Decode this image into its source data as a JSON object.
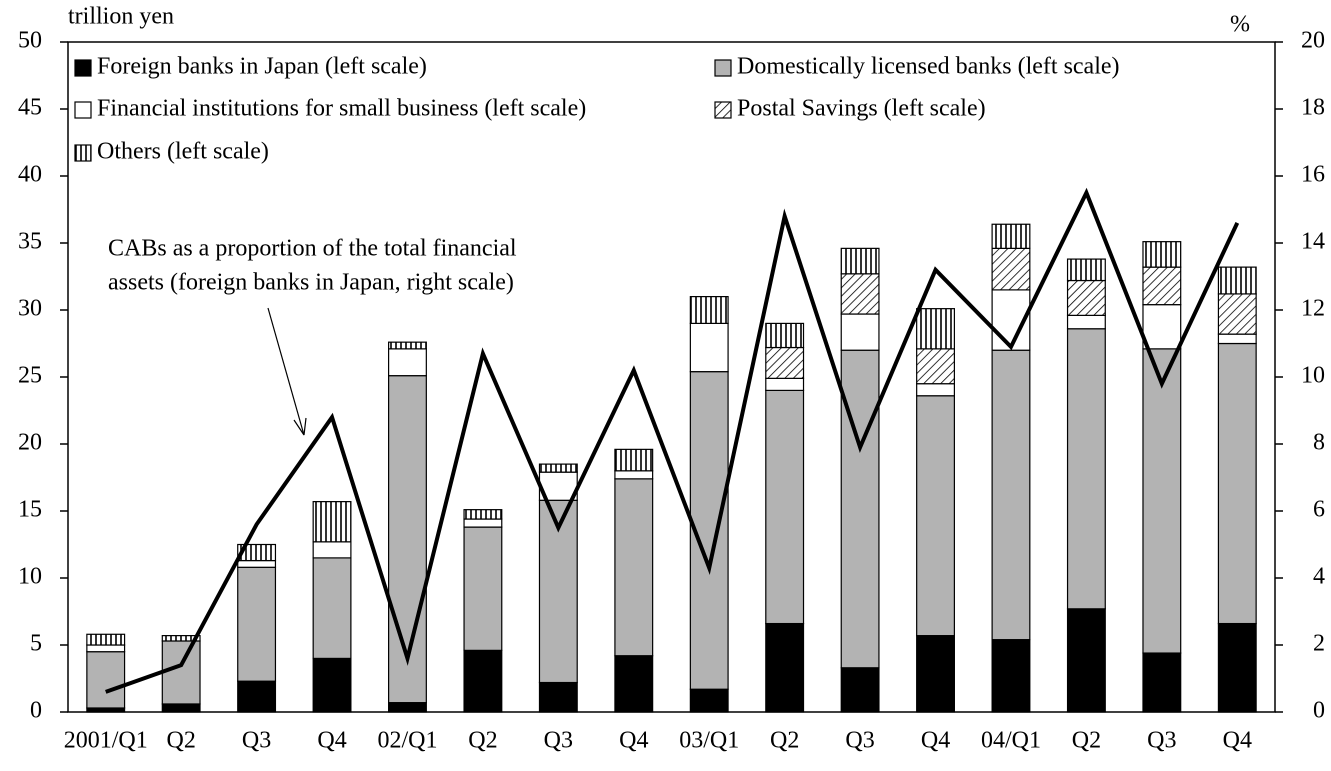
{
  "chart_data": {
    "type": "bar",
    "stacked": true,
    "y_label": "trillion yen",
    "y2_label": "%",
    "annotation": [
      "CABs as a proportion of the total financial",
      "assets (foreign banks in Japan, right scale)"
    ],
    "categories": [
      "2001/Q1",
      "Q2",
      "Q3",
      "Q4",
      "02/Q1",
      "Q2",
      "Q3",
      "Q4",
      "03/Q1",
      "Q2",
      "Q3",
      "Q4",
      "04/Q1",
      "Q2",
      "Q3",
      "Q4"
    ],
    "series": [
      {
        "name": "Foreign banks in Japan (left scale)",
        "color": "#000000",
        "values": [
          0.3,
          0.6,
          2.3,
          4.0,
          0.7,
          4.6,
          2.2,
          4.2,
          1.7,
          6.6,
          3.3,
          5.7,
          5.4,
          7.7,
          4.4,
          6.6
        ]
      },
      {
        "name": "Domestically licensed banks (left scale)",
        "color": "#b3b3b3",
        "values": [
          4.2,
          4.7,
          8.5,
          7.5,
          24.4,
          9.2,
          13.6,
          13.2,
          23.7,
          17.4,
          23.7,
          17.9,
          21.6,
          20.9,
          22.7,
          20.9
        ]
      },
      {
        "name": "Financial institutions for small business (left scale)",
        "color": "#ffffff",
        "values": [
          0.5,
          0,
          0.5,
          1.2,
          2.0,
          0.6,
          2.1,
          0.6,
          3.6,
          0.9,
          2.7,
          0.9,
          4.5,
          1.0,
          3.3,
          0.7
        ]
      },
      {
        "name": "Postal Savings (left scale)",
        "color": "#ffffff",
        "pattern": "diagonal",
        "values": [
          0,
          0,
          0,
          0,
          0,
          0,
          0,
          0,
          0,
          2.3,
          3.0,
          2.6,
          3.1,
          2.6,
          2.8,
          3.0
        ]
      },
      {
        "name": "Others (left scale)",
        "color": "#ffffff",
        "pattern": "vertical",
        "values": [
          0.8,
          0.4,
          1.2,
          3.0,
          0.5,
          0.7,
          0.6,
          1.6,
          2.0,
          1.8,
          1.9,
          3.0,
          1.8,
          1.6,
          1.9,
          2.0
        ]
      },
      {
        "type": "line",
        "axis": "y2",
        "color": "#000000",
        "values": [
          0.6,
          1.4,
          5.6,
          8.8,
          1.6,
          10.7,
          5.5,
          10.2,
          4.3,
          14.8,
          7.9,
          13.2,
          10.9,
          15.5,
          9.8,
          14.6
        ]
      }
    ],
    "ylim": [
      0,
      50
    ],
    "yticks": [
      0,
      5,
      10,
      15,
      20,
      25,
      30,
      35,
      40,
      45,
      50
    ],
    "y2lim": [
      0,
      20
    ],
    "y2ticks": [
      0,
      2,
      4,
      6,
      8,
      10,
      12,
      14,
      16,
      18,
      20
    ],
    "legend": "top-left"
  }
}
